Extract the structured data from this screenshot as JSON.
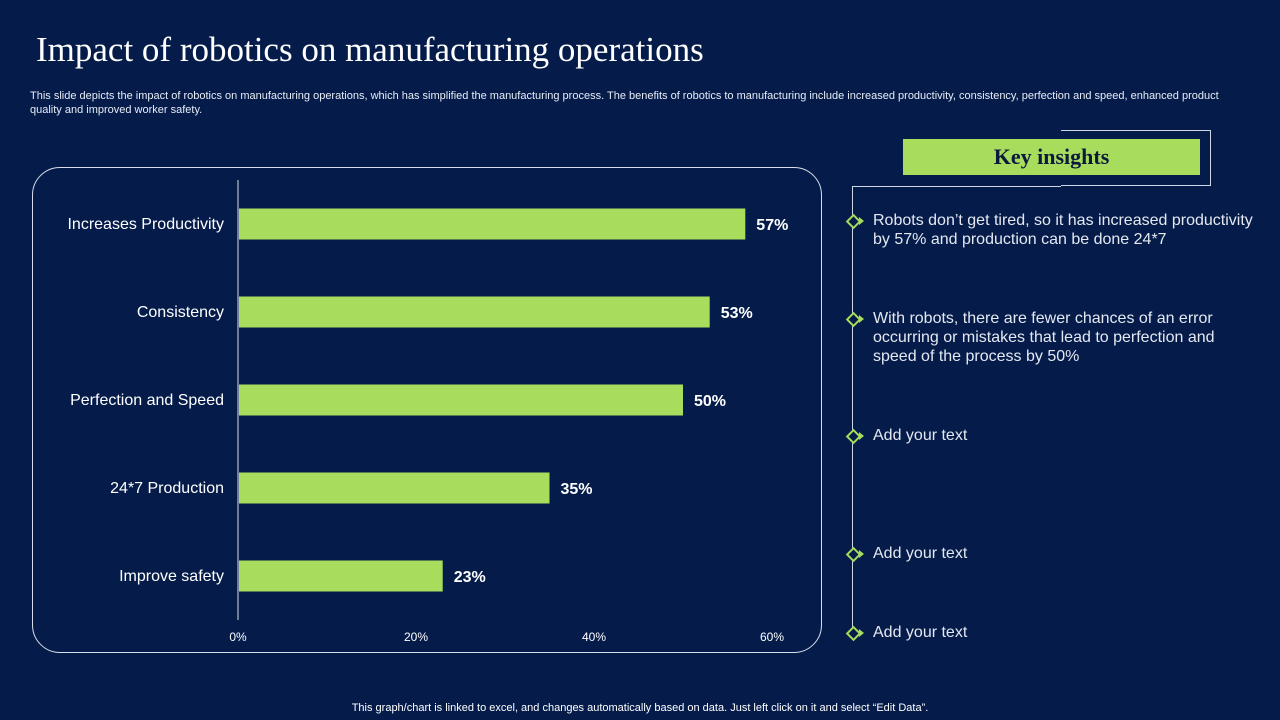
{
  "title": "Impact of robotics on manufacturing operations",
  "subtitle": "This slide depicts the impact of robotics on manufacturing operations, which has simplified the manufacturing process. The benefits of robotics to manufacturing include increased productivity, consistency, perfection and speed, enhanced product quality and improved worker safety.",
  "chart_data": {
    "type": "bar",
    "orientation": "horizontal",
    "categories": [
      "Increases Productivity",
      "Consistency",
      "Perfection and Speed",
      "24*7 Production",
      "Improve  safety"
    ],
    "values": [
      57,
      53,
      50,
      35,
      23
    ],
    "value_labels": [
      "57%",
      "53%",
      "50%",
      "35%",
      "23%"
    ],
    "xlim": [
      0,
      60
    ],
    "xticks": [
      "0%",
      "20%",
      "40%",
      "60%"
    ],
    "xtick_values": [
      0,
      20,
      40,
      60
    ],
    "grid": false,
    "bar_color": "#a8dc5c"
  },
  "insights": {
    "header": "Key insights",
    "items": [
      "Robots don’t get tired, so it has increased productivity by 57% and production can be done 24*7",
      "With robots, there are fewer chances of an error occurring or mistakes that lead to perfection and speed of the process by 50%",
      "Add your text",
      "Add your text",
      "Add your text"
    ]
  },
  "footer": "This graph/chart is linked to excel,  and changes automatically based on data. Just left click on it and select “Edit Data”.",
  "colors": {
    "background": "#051c4b",
    "accent": "#a8dc5c",
    "text": "#ffffff"
  }
}
